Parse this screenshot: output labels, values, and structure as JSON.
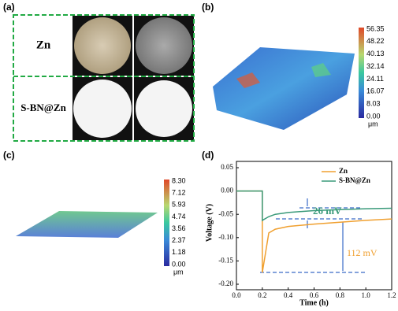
{
  "figure": {
    "panel_labels": [
      "(a)",
      "(b)",
      "(c)",
      "(d)"
    ],
    "panel_a": {
      "rows": [
        "Zn",
        "S-BN@Zn"
      ]
    },
    "colorbar_b": {
      "ticks": [
        "56.35",
        "48.22",
        "40.13",
        "32.14",
        "24.11",
        "16.07",
        "8.03",
        "0.00"
      ],
      "unit": "μm"
    },
    "colorbar_c": {
      "ticks": [
        "8.30",
        "7.12",
        "5.93",
        "4.74",
        "3.56",
        "2.37",
        "1.18",
        "0.00"
      ],
      "unit": "μm"
    }
  },
  "chart_data": {
    "type": "line",
    "xlabel": "Time (h)",
    "ylabel": "Voltage (V)",
    "x": [
      0,
      0.2,
      0.2,
      0.25,
      0.3,
      0.4,
      0.6,
      0.8,
      1.0,
      1.2
    ],
    "series": [
      {
        "name": "Zn",
        "color": "#f0a030",
        "values": [
          0,
          0,
          -0.175,
          -0.09,
          -0.082,
          -0.076,
          -0.071,
          -0.067,
          -0.063,
          -0.06
        ]
      },
      {
        "name": "S-BN@Zn",
        "color": "#3a9a7a",
        "values": [
          0,
          0,
          -0.063,
          -0.055,
          -0.05,
          -0.046,
          -0.042,
          -0.04,
          -0.038,
          -0.037
        ]
      }
    ],
    "xlim": [
      0,
      1.2
    ],
    "ylim": [
      -0.2,
      0.05
    ],
    "xticks": [
      {
        "value": 0,
        "label": "0.0"
      },
      {
        "value": 0.2,
        "label": "0.2"
      },
      {
        "value": 0.4,
        "label": "0.4"
      },
      {
        "value": 0.6,
        "label": "0.6"
      },
      {
        "value": 0.8,
        "label": "0.8"
      },
      {
        "value": 1.0,
        "label": "1.0"
      },
      {
        "value": 1.2,
        "label": "1.2"
      }
    ],
    "yticks": [
      {
        "value": -0.2,
        "label": "-0.20"
      },
      {
        "value": -0.15,
        "label": "-0.15"
      },
      {
        "value": -0.1,
        "label": "-0.10"
      },
      {
        "value": -0.05,
        "label": "-0.05"
      },
      {
        "value": 0,
        "label": "0.00"
      },
      {
        "value": 0.05,
        "label": "0.05"
      }
    ],
    "annotations": [
      "26 mV",
      "112 mV"
    ],
    "legend": "upper right"
  }
}
